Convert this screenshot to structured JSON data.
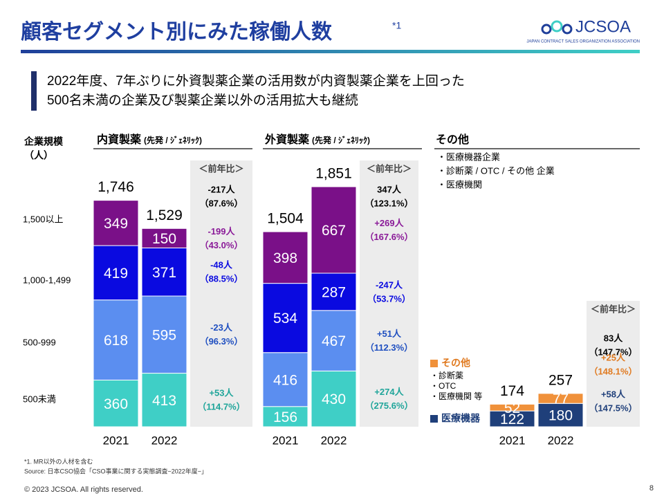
{
  "header": {
    "title": "顧客セグメント別にみた稼働人数",
    "title_note": "*1",
    "logo": "JCSOA",
    "logo_sub": "JAPAN CONTRACT SALES ORGANIZATION ASSOCIATION"
  },
  "subtitle": [
    "2022年度、7年ぶりに外資製薬企業の活用数が内資製薬企業を上回った",
    "500名未満の企業及び製薬企業以外の活用拡大も継続"
  ],
  "size_axis_title": [
    "企業規模",
    "（人）"
  ],
  "chart_data": [
    {
      "type": "stacked_bar",
      "title": "内資製薬",
      "subtitle": "(先発 / ｼﾞｪﾈﾘｯｸ)",
      "categories": [
        "2021",
        "2022"
      ],
      "totals": [
        1746,
        1529
      ],
      "total_labels": [
        "1,746",
        "1,529"
      ],
      "change_header": "＜前年比＞",
      "total_change": [
        "-217人",
        "（87.6%）"
      ],
      "series": [
        {
          "name": "500未満",
          "color": "#3fcfc6",
          "values": [
            360,
            413
          ],
          "change": [
            "+53人",
            "（114.7%）"
          ],
          "change_color": "#1fa59a"
        },
        {
          "name": "500-999",
          "color": "#5b8ef0",
          "values": [
            618,
            595
          ],
          "change": [
            "-23人",
            "（96.3%）"
          ],
          "change_color": "#1f4fc0"
        },
        {
          "name": "1,000-1,499",
          "color": "#0a0ae0",
          "values": [
            419,
            371
          ],
          "change": [
            "-48人",
            "（88.5%）"
          ],
          "change_color": "#0a0ae0"
        },
        {
          "name": "1,500以上",
          "color": "#7a1088",
          "values": [
            349,
            150
          ],
          "change": [
            "-199人",
            "（43.0%）"
          ],
          "change_color": "#8a1a98"
        }
      ]
    },
    {
      "type": "stacked_bar",
      "title": "外資製薬",
      "subtitle": "(先発 / ｼﾞｪﾈﾘｯｸ)",
      "categories": [
        "2021",
        "2022"
      ],
      "totals": [
        1504,
        1851
      ],
      "total_labels": [
        "1,504",
        "1,851"
      ],
      "change_header": "＜前年比＞",
      "total_change": [
        "347人",
        "（123.1%）"
      ],
      "series": [
        {
          "color": "#3fcfc6",
          "values": [
            156,
            430
          ],
          "change": [
            "+274人",
            "（275.6%）"
          ],
          "change_color": "#1fa59a"
        },
        {
          "color": "#5b8ef0",
          "values": [
            416,
            467
          ],
          "change": [
            "+51人",
            "（112.3%）"
          ],
          "change_color": "#1f4fc0"
        },
        {
          "color": "#0a0ae0",
          "values": [
            534,
            287
          ],
          "change": [
            "-247人",
            "（53.7%）"
          ],
          "change_color": "#0a0ae0"
        },
        {
          "color": "#7a1088",
          "values": [
            398,
            667
          ],
          "change": [
            "+269人",
            "（167.6%）"
          ],
          "change_color": "#8a1a98"
        }
      ]
    },
    {
      "type": "stacked_bar",
      "title": "その他",
      "items": [
        "・医療機器企業",
        "・診断薬 / OTC / その他 企業",
        "・医療機関"
      ],
      "categories": [
        "2021",
        "2022"
      ],
      "totals": [
        174,
        257
      ],
      "change_header": "＜前年比＞",
      "total_change": [
        "83人",
        "（147.7%）"
      ],
      "series": [
        {
          "name": "医療機器",
          "color": "#1f3f7a",
          "values": [
            122,
            180
          ],
          "change": [
            "+58人",
            "（147.5%）"
          ],
          "change_color": "#1f3f7a"
        },
        {
          "name": "その他",
          "sub": [
            "・診断薬",
            "・OTC",
            "・医療機関 等"
          ],
          "color": "#f0913a",
          "values": [
            52,
            77
          ],
          "change": [
            "+25人",
            "（148.1%）"
          ],
          "change_color": "#e07a20"
        }
      ]
    }
  ],
  "footnotes": [
    "*1. MR以外の人材を含む",
    "Source: 日本CSO協会「CSO事業に関する実態調査−2022年度−」"
  ],
  "footer": "© 2023 JCSOA. All rights reserved.",
  "page": "8"
}
